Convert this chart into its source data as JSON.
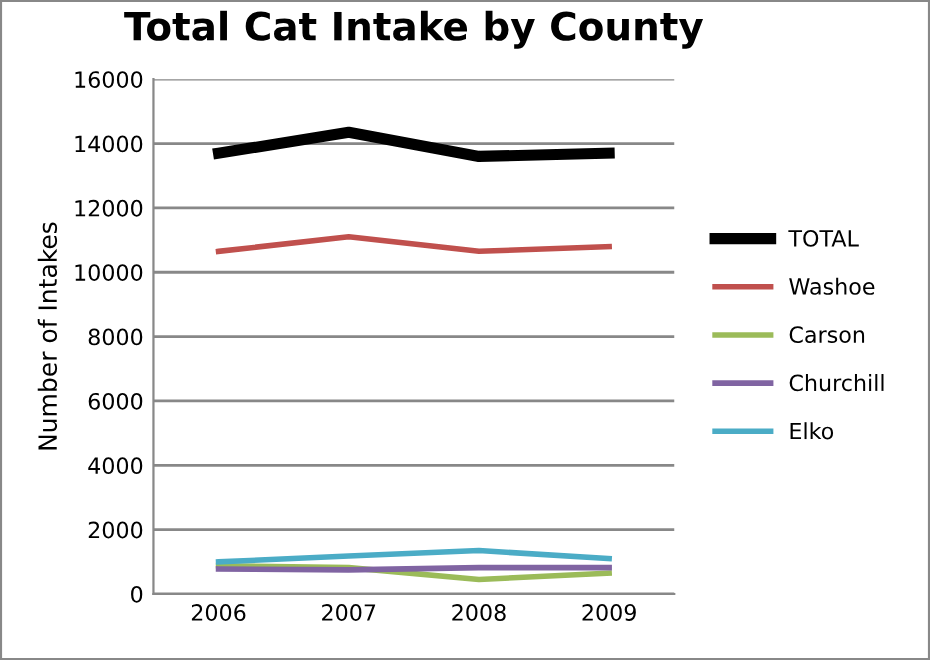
{
  "chart_data": {
    "type": "line",
    "title": "Total Cat Intake by County",
    "ylabel": "Number of Intakes",
    "categories": [
      "2006",
      "2007",
      "2008",
      "2009"
    ],
    "series": [
      {
        "name": "TOTAL",
        "color": "#000000",
        "values": [
          13700,
          14350,
          13600,
          13700
        ]
      },
      {
        "name": "Washoe",
        "color": "#c0504d",
        "values": [
          10650,
          11100,
          10650,
          10800
        ]
      },
      {
        "name": "Carson",
        "color": "#9bbb59",
        "values": [
          880,
          820,
          450,
          650
        ]
      },
      {
        "name": "Churchill",
        "color": "#8064a2",
        "values": [
          780,
          750,
          820,
          820
        ]
      },
      {
        "name": "Elko",
        "color": "#4bacc6",
        "values": [
          1000,
          1180,
          1350,
          1100
        ]
      }
    ],
    "ylim": [
      0,
      16000
    ],
    "yticks": [
      0,
      2000,
      4000,
      6000,
      8000,
      10000,
      12000,
      14000,
      16000
    ],
    "grid": "y",
    "legend": "right",
    "marker": "none",
    "line_style": "solid"
  }
}
